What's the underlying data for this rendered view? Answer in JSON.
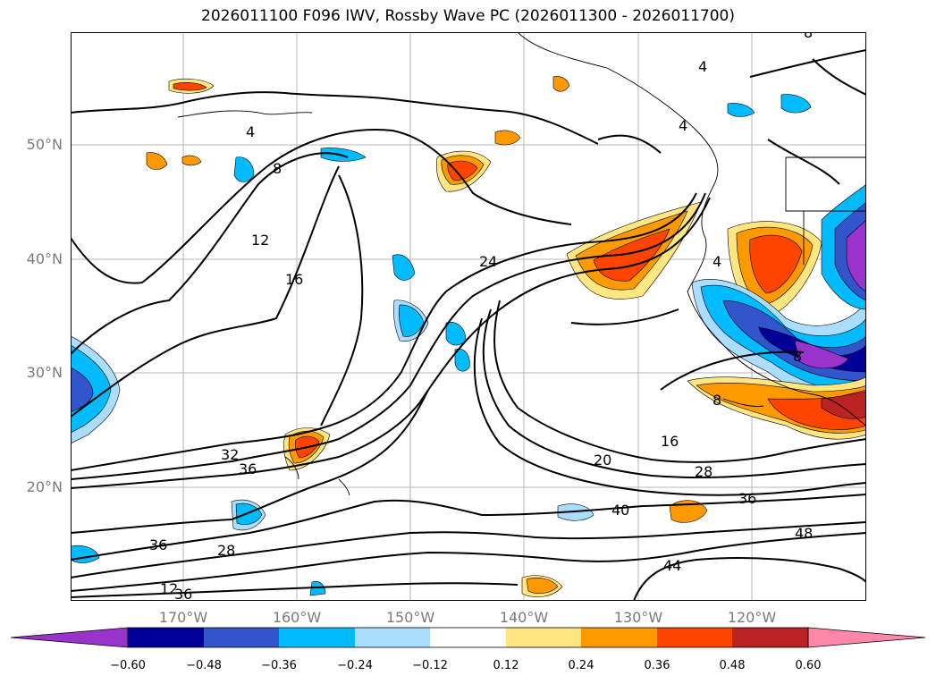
{
  "title": "2026011100 F096 IWV, Rossby Wave PC (2026011300 - 2026011700)",
  "lat_labels": [
    "50°N",
    "40°N",
    "30°N",
    "20°N"
  ],
  "lon_labels": [
    "170°W",
    "160°W",
    "150°W",
    "140°W",
    "130°W",
    "120°W"
  ],
  "colorbar": {
    "ticks": [
      "−0.60",
      "−0.48",
      "−0.36",
      "−0.24",
      "−0.12",
      "0.12",
      "0.24",
      "0.36",
      "0.48",
      "0.60"
    ],
    "colors": [
      "#9933cc",
      "#000099",
      "#3355cc",
      "#00bbff",
      "#aaddff",
      "#ffffff",
      "#ffe680",
      "#ff9900",
      "#ff4400",
      "#bb2222",
      "#ff88aa"
    ]
  },
  "contour_labels": [
    "4",
    "8",
    "12",
    "16",
    "24",
    "36",
    "36",
    "28",
    "16",
    "20",
    "28",
    "36",
    "40",
    "44",
    "48",
    "8",
    "4",
    "4",
    "4",
    "8",
    "8",
    "12",
    "36",
    "32"
  ]
}
